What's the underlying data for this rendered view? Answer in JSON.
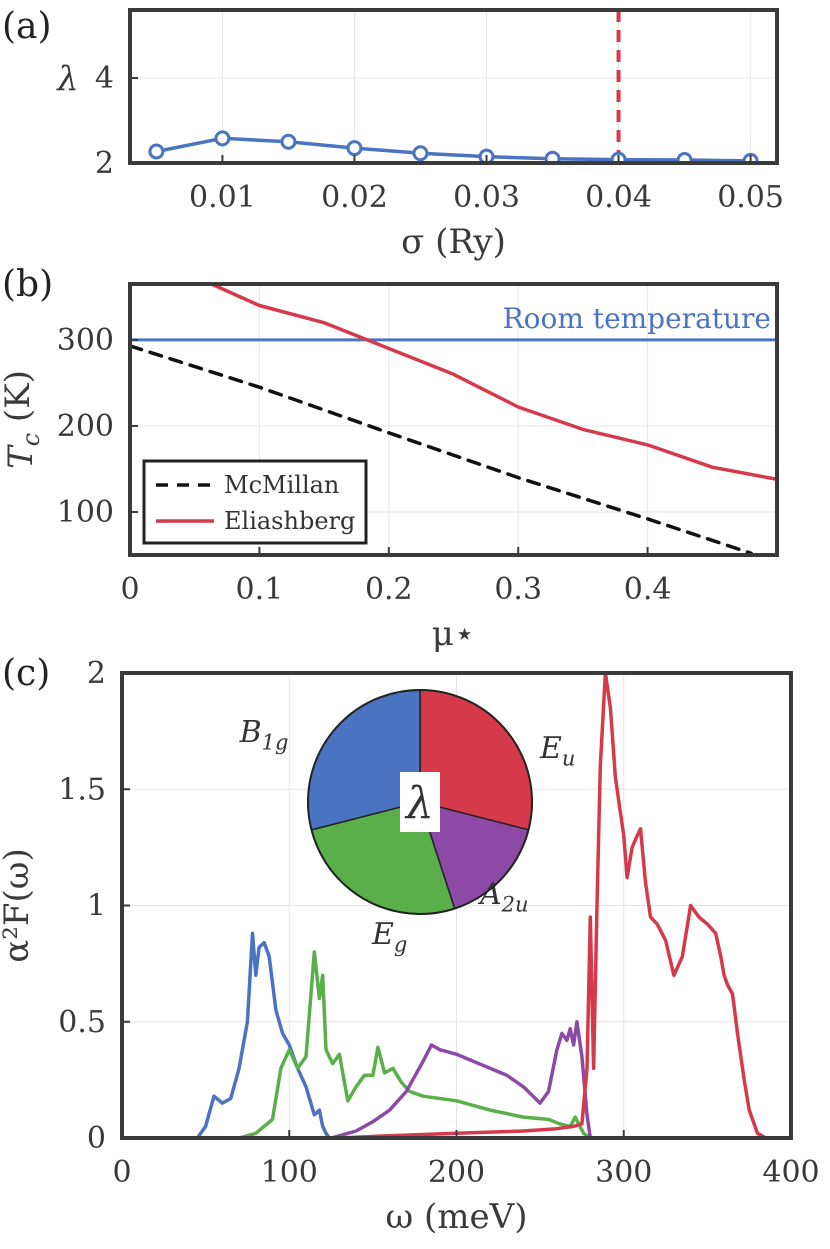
{
  "chart_data": [
    {
      "type": "line",
      "panel_label": "(a)",
      "xlabel": "σ (Ry)",
      "ylabel": "λ",
      "xlim": [
        0.003,
        0.052
      ],
      "ylim": [
        2,
        5.6
      ],
      "xticks": [
        "0.01",
        "0.02",
        "0.03",
        "0.04",
        "0.05"
      ],
      "yticks": [
        "2",
        "4"
      ],
      "grid": true,
      "series": [
        {
          "color": "#4a73c2",
          "marker": "circle",
          "x": [
            0.005,
            0.01,
            0.015,
            0.02,
            0.025,
            0.03,
            0.035,
            0.04,
            0.045,
            0.05
          ],
          "y": [
            2.27,
            2.58,
            2.5,
            2.35,
            2.23,
            2.15,
            2.1,
            2.08,
            2.07,
            2.05
          ]
        }
      ],
      "vline": {
        "x": 0.04,
        "color": "#d63a4a",
        "style": "dashed"
      }
    },
    {
      "type": "line",
      "panel_label": "(b)",
      "xlabel": "μ⋆",
      "ylabel": "Tc (K)",
      "xlim": [
        0,
        0.5
      ],
      "ylim": [
        50,
        365
      ],
      "xticks": [
        "0",
        "0.1",
        "0.2",
        "0.3",
        "0.4"
      ],
      "yticks": [
        "100",
        "200",
        "300"
      ],
      "grid": true,
      "legend_position": "bottom-left",
      "hline": {
        "y": 300,
        "color": "#4a73c2",
        "label": "Room temperature"
      },
      "series": [
        {
          "name": "McMillan",
          "color": "#111111",
          "style": "dashed",
          "x": [
            0,
            0.1,
            0.2,
            0.3,
            0.4,
            0.48
          ],
          "y": [
            293,
            245,
            192,
            140,
            92,
            52
          ]
        },
        {
          "name": "Eliashberg",
          "color": "#d63a4a",
          "style": "solid",
          "x": [
            0.063,
            0.1,
            0.15,
            0.2,
            0.25,
            0.3,
            0.35,
            0.4,
            0.45,
            0.5
          ],
          "y": [
            365,
            340,
            320,
            290,
            260,
            222,
            196,
            178,
            152,
            138
          ]
        }
      ]
    },
    {
      "type": "line",
      "panel_label": "(c)",
      "xlabel": "ω (meV)",
      "ylabel": "α²F(ω)",
      "xlim": [
        0,
        400
      ],
      "ylim": [
        0,
        2
      ],
      "xticks": [
        "0",
        "100",
        "200",
        "300",
        "400"
      ],
      "yticks": [
        "0",
        "0.5",
        "1",
        "1.5",
        "2"
      ],
      "grid": true,
      "series": [
        {
          "color": "#4a73c2",
          "x": [
            0,
            45,
            50,
            55,
            60,
            65,
            70,
            75,
            78,
            80,
            82,
            85,
            88,
            92,
            96,
            100,
            105,
            110,
            115,
            118,
            120,
            122,
            124,
            128,
            400
          ],
          "y": [
            0,
            0,
            0.05,
            0.18,
            0.15,
            0.17,
            0.3,
            0.5,
            0.88,
            0.7,
            0.82,
            0.84,
            0.78,
            0.55,
            0.45,
            0.4,
            0.3,
            0.22,
            0.1,
            0.12,
            0.05,
            0.02,
            0,
            0,
            0
          ]
        },
        {
          "color": "#5aaf4a",
          "x": [
            0,
            70,
            80,
            90,
            95,
            100,
            105,
            110,
            115,
            118,
            120,
            122,
            126,
            130,
            135,
            140,
            145,
            150,
            153,
            157,
            162,
            167,
            172,
            180,
            200,
            220,
            240,
            255,
            262,
            268,
            271,
            276,
            280,
            400
          ],
          "y": [
            0,
            0,
            0.02,
            0.08,
            0.3,
            0.38,
            0.3,
            0.35,
            0.8,
            0.6,
            0.7,
            0.38,
            0.32,
            0.36,
            0.16,
            0.22,
            0.27,
            0.27,
            0.39,
            0.28,
            0.3,
            0.24,
            0.2,
            0.18,
            0.16,
            0.12,
            0.09,
            0.08,
            0.06,
            0.05,
            0.09,
            0.02,
            0,
            0
          ]
        },
        {
          "color": "#8c4aa6",
          "x": [
            0,
            125,
            140,
            150,
            160,
            170,
            180,
            185,
            190,
            200,
            210,
            220,
            230,
            240,
            250,
            255,
            260,
            263,
            266,
            268,
            270,
            272,
            275,
            278,
            280,
            400
          ],
          "y": [
            0,
            0,
            0.03,
            0.07,
            0.12,
            0.2,
            0.33,
            0.4,
            0.38,
            0.36,
            0.33,
            0.3,
            0.27,
            0.22,
            0.15,
            0.2,
            0.38,
            0.45,
            0.42,
            0.47,
            0.4,
            0.5,
            0.35,
            0.1,
            0,
            0
          ]
        },
        {
          "color": "#d63a4a",
          "x": [
            0,
            130,
            160,
            200,
            240,
            260,
            270,
            275,
            278,
            280,
            282,
            284,
            286,
            289,
            292,
            295,
            298,
            300,
            302,
            305,
            308,
            310,
            313,
            316,
            320,
            325,
            330,
            335,
            340,
            345,
            350,
            355,
            358,
            360,
            362,
            365,
            368,
            372,
            375,
            380,
            385,
            400
          ],
          "y": [
            0,
            0,
            0.01,
            0.02,
            0.03,
            0.04,
            0.05,
            0.06,
            0.3,
            0.95,
            0.3,
            1.0,
            1.6,
            2.0,
            1.85,
            1.55,
            1.4,
            1.3,
            1.12,
            1.25,
            1.3,
            1.33,
            1.1,
            0.95,
            0.92,
            0.85,
            0.7,
            0.78,
            1.0,
            0.95,
            0.92,
            0.88,
            0.78,
            0.7,
            0.66,
            0.62,
            0.45,
            0.25,
            0.12,
            0.02,
            0,
            0
          ]
        }
      ],
      "inset_pie": {
        "center_label": "λ",
        "slices": [
          {
            "label": "E_u",
            "value": 0.29,
            "color": "#d63a4a"
          },
          {
            "label": "A_2u",
            "value": 0.16,
            "color": "#8c4aa6"
          },
          {
            "label": "E_g",
            "value": 0.26,
            "color": "#5aaf4a"
          },
          {
            "label": "B_1g",
            "value": 0.29,
            "color": "#4a73c2"
          }
        ]
      }
    }
  ]
}
